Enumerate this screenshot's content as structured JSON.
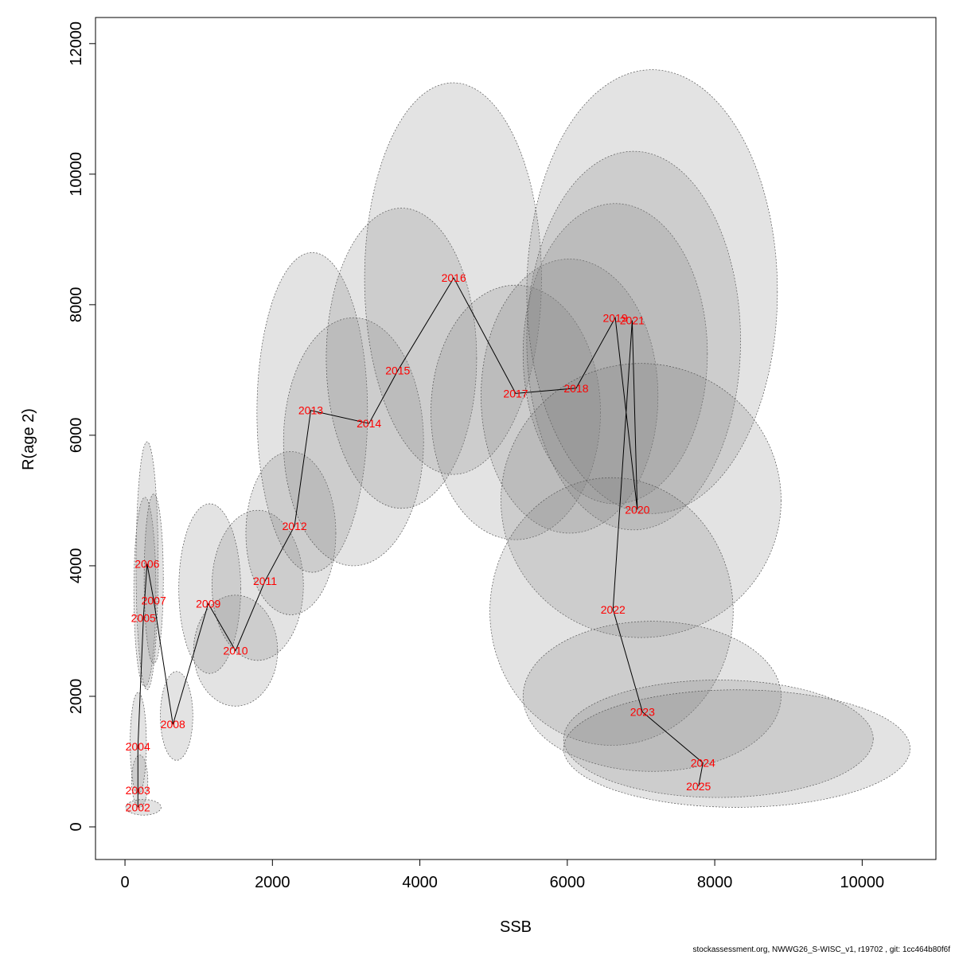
{
  "chart_data": {
    "type": "line",
    "xlabel": "SSB",
    "ylabel": "R(age 2)",
    "xlim": [
      -400,
      11000
    ],
    "ylim": [
      -500,
      12400
    ],
    "x_ticks": [
      0,
      2000,
      4000,
      6000,
      8000,
      10000
    ],
    "y_ticks": [
      0,
      2000,
      4000,
      6000,
      8000,
      10000,
      12000
    ],
    "footer": "stockassessment.org, NWWG26_S-WISC_v1, r19702 , git: 1cc464b80f6f",
    "colors": {
      "label": "#ff0000",
      "line": "#000000",
      "region_fill": "#808080",
      "region_stroke": "#555555"
    },
    "points": [
      {
        "year": "2002",
        "ssb": 175,
        "rec": 300
      },
      {
        "year": "2003",
        "ssb": 175,
        "rec": 560
      },
      {
        "year": "2004",
        "ssb": 175,
        "rec": 1230
      },
      {
        "year": "2005",
        "ssb": 250,
        "rec": 3200
      },
      {
        "year": "2006",
        "ssb": 300,
        "rec": 4030
      },
      {
        "year": "2007",
        "ssb": 390,
        "rec": 3470
      },
      {
        "year": "2008",
        "ssb": 650,
        "rec": 1570
      },
      {
        "year": "2009",
        "ssb": 1130,
        "rec": 3420
      },
      {
        "year": "2010",
        "ssb": 1500,
        "rec": 2700
      },
      {
        "year": "2011",
        "ssb": 1900,
        "rec": 3770
      },
      {
        "year": "2012",
        "ssb": 2300,
        "rec": 4610
      },
      {
        "year": "2013",
        "ssb": 2520,
        "rec": 6380
      },
      {
        "year": "2014",
        "ssb": 3310,
        "rec": 6180
      },
      {
        "year": "2015",
        "ssb": 3700,
        "rec": 6990
      },
      {
        "year": "2016",
        "ssb": 4460,
        "rec": 8410
      },
      {
        "year": "2017",
        "ssb": 5300,
        "rec": 6640
      },
      {
        "year": "2018",
        "ssb": 6120,
        "rec": 6720
      },
      {
        "year": "2019",
        "ssb": 6650,
        "rec": 7800
      },
      {
        "year": "2020",
        "ssb": 6950,
        "rec": 4860
      },
      {
        "year": "2021",
        "ssb": 6880,
        "rec": 7760
      },
      {
        "year": "2022",
        "ssb": 6620,
        "rec": 3330
      },
      {
        "year": "2023",
        "ssb": 7020,
        "rec": 1760
      },
      {
        "year": "2024",
        "ssb": 7840,
        "rec": 980
      },
      {
        "year": "2025",
        "ssb": 7780,
        "rec": 620
      }
    ],
    "confidence_regions": [
      {
        "year": "2002",
        "cx": 250,
        "cy": 300,
        "rx": 240,
        "ry": 120
      },
      {
        "year": "2003",
        "cx": 200,
        "cy": 700,
        "rx": 110,
        "ry": 400
      },
      {
        "year": "2004",
        "cx": 180,
        "cy": 1280,
        "rx": 110,
        "ry": 780
      },
      {
        "year": "2005",
        "cx": 270,
        "cy": 3600,
        "rx": 150,
        "ry": 1450
      },
      {
        "year": "2006",
        "cx": 300,
        "cy": 4000,
        "rx": 150,
        "ry": 1900
      },
      {
        "year": "2007",
        "cx": 390,
        "cy": 3800,
        "rx": 130,
        "ry": 1300
      },
      {
        "year": "2008",
        "cx": 700,
        "cy": 1700,
        "rx": 220,
        "ry": 680
      },
      {
        "year": "2009",
        "cx": 1150,
        "cy": 3650,
        "rx": 420,
        "ry": 1300
      },
      {
        "year": "2010",
        "cx": 1500,
        "cy": 2700,
        "rx": 570,
        "ry": 850
      },
      {
        "year": "2011",
        "cx": 1800,
        "cy": 3700,
        "rx": 620,
        "ry": 1150
      },
      {
        "year": "2012",
        "cx": 2250,
        "cy": 4500,
        "rx": 610,
        "ry": 1250
      },
      {
        "year": "2013",
        "cx": 2540,
        "cy": 6350,
        "rx": 750,
        "ry": 2450
      },
      {
        "year": "2014",
        "cx": 3100,
        "cy": 5900,
        "rx": 950,
        "ry": 1900
      },
      {
        "year": "2015",
        "cx": 3750,
        "cy": 7180,
        "rx": 1020,
        "ry": 2300
      },
      {
        "year": "2016",
        "cx": 4450,
        "cy": 8400,
        "rx": 1200,
        "ry": 3000
      },
      {
        "year": "2017",
        "cx": 5300,
        "cy": 6350,
        "rx": 1150,
        "ry": 1950
      },
      {
        "year": "2018",
        "cx": 6030,
        "cy": 6600,
        "rx": 1200,
        "ry": 2100
      },
      {
        "year": "2019",
        "cx": 6650,
        "cy": 7250,
        "rx": 1250,
        "ry": 2300
      },
      {
        "year": "2020",
        "cx": 6900,
        "cy": 7450,
        "rx": 1450,
        "ry": 2900
      },
      {
        "year": "2021",
        "cx": 7150,
        "cy": 8200,
        "rx": 1700,
        "ry": 3400
      },
      {
        "year": "2022",
        "cx": 7000,
        "cy": 5000,
        "rx": 1900,
        "ry": 2100
      },
      {
        "year": "2023",
        "cx": 6600,
        "cy": 3300,
        "rx": 1650,
        "ry": 2050
      },
      {
        "year": "2024",
        "cx": 7150,
        "cy": 2000,
        "rx": 1750,
        "ry": 1150
      },
      {
        "year": "2025",
        "cx": 8050,
        "cy": 1350,
        "rx": 2100,
        "ry": 900
      },
      {
        "year": "2025b",
        "cx": 8300,
        "cy": 1200,
        "rx": 2350,
        "ry": 900
      }
    ]
  }
}
